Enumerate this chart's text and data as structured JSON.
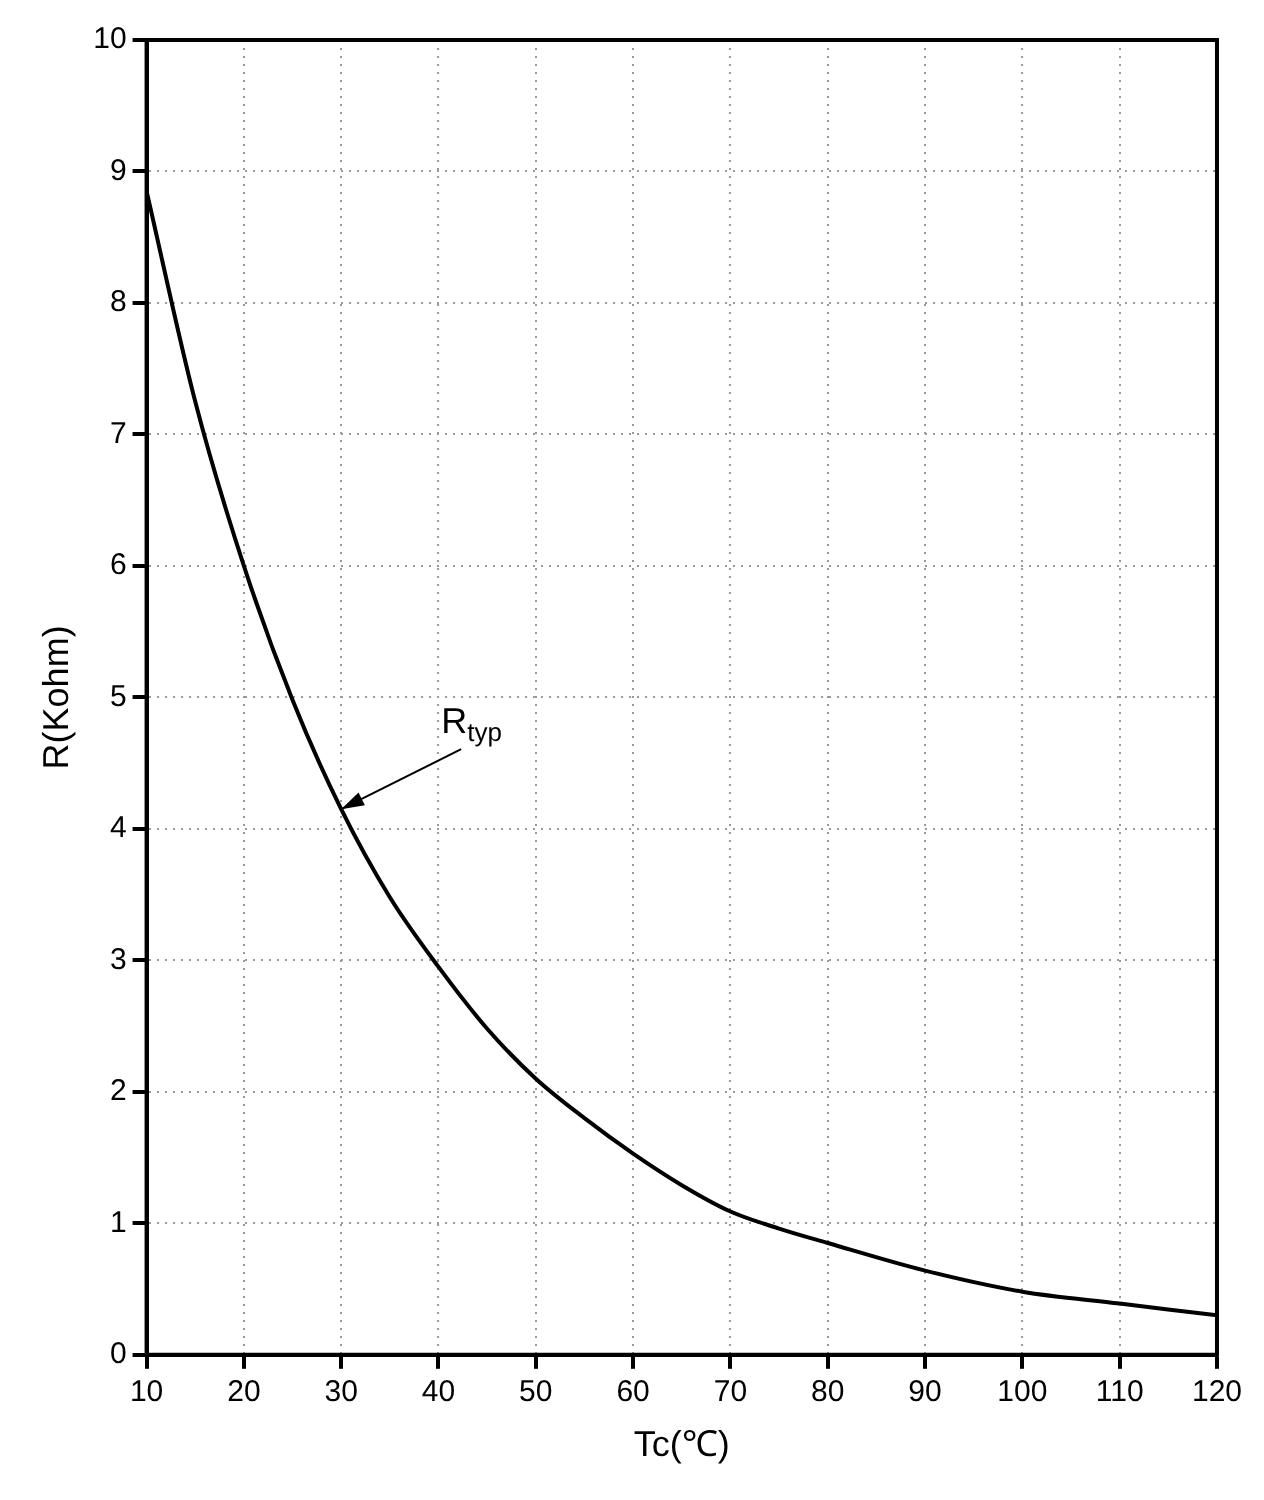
{
  "chart_data": {
    "type": "line",
    "xlabel": "Tc(℃)",
    "ylabel": "R(Kohm)",
    "x": [
      10,
      15,
      20,
      25,
      30,
      35,
      40,
      45,
      50,
      55,
      60,
      65,
      70,
      75,
      80,
      90,
      100,
      110,
      120
    ],
    "series": [
      {
        "color": "#000000",
        "values": [
          8.85,
          7.25,
          6.0,
          4.98,
          4.15,
          3.48,
          2.95,
          2.48,
          2.1,
          1.8,
          1.53,
          1.29,
          1.09,
          0.96,
          0.85,
          0.64,
          0.48,
          0.39,
          0.3
        ]
      }
    ],
    "xlim": [
      10,
      120
    ],
    "xticks": [
      10,
      20,
      30,
      40,
      50,
      60,
      70,
      80,
      90,
      100,
      110,
      120
    ],
    "ylim": [
      0,
      10
    ],
    "yticks": [
      0,
      1,
      2,
      3,
      4,
      5,
      6,
      7,
      8,
      9,
      10
    ],
    "grid": true,
    "legend": false,
    "marker": "none",
    "line_style": "solid",
    "annotations": [
      {
        "text": "R$_{typ}$",
        "x": 30,
        "y": 4.15
      }
    ]
  }
}
